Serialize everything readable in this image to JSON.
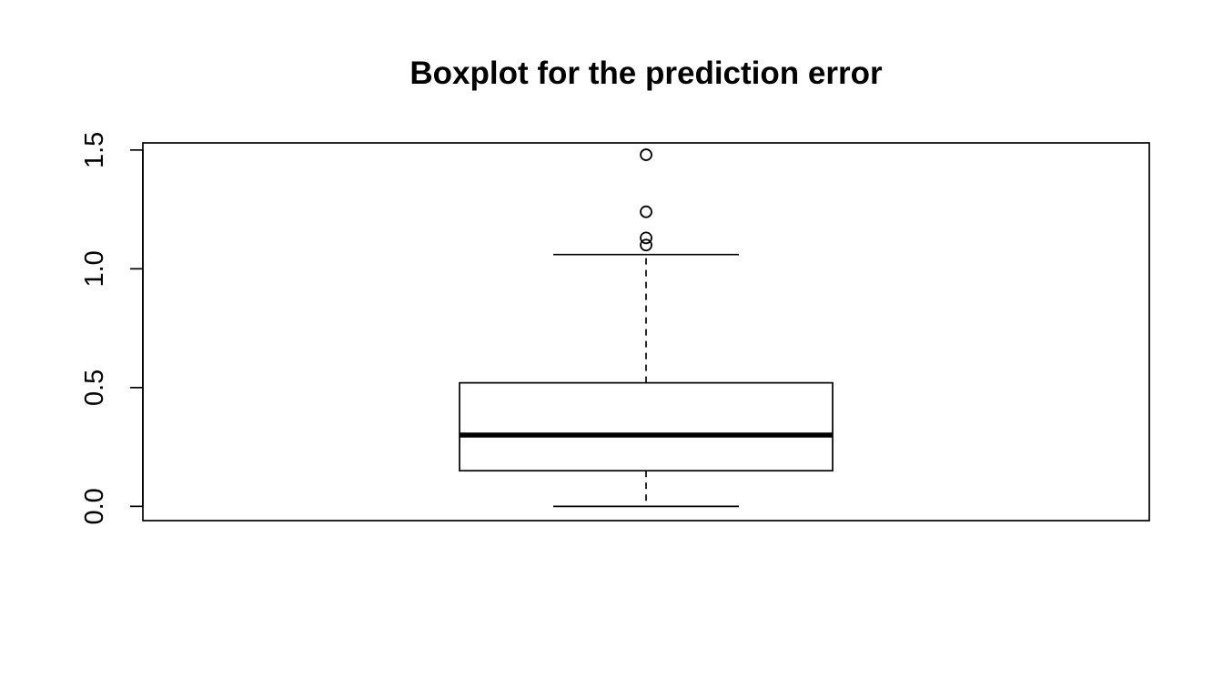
{
  "chart_data": {
    "type": "boxplot",
    "title": "Boxplot for the prediction error",
    "xlabel": "",
    "ylabel": "",
    "ylim": [
      -0.06,
      1.53
    ],
    "y_ticks": [
      0.0,
      0.5,
      1.0,
      1.5
    ],
    "y_tick_labels": [
      "0.0",
      "0.5",
      "1.0",
      "1.5"
    ],
    "box": {
      "whisker_low": 0.0,
      "q1": 0.15,
      "median": 0.3,
      "q3": 0.52,
      "whisker_high": 1.06
    },
    "outliers": [
      1.1,
      1.13,
      1.24,
      1.48
    ],
    "grid": false,
    "colors": {
      "box_fill": "#ffffff",
      "line": "#000000"
    }
  }
}
